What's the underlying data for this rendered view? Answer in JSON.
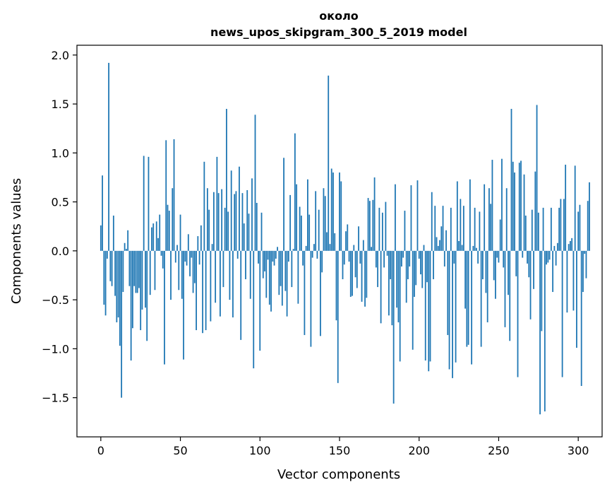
{
  "chart_data": {
    "type": "bar",
    "title_line1": "около",
    "title_line2": "news_upos_skipgram_300_5_2019 model",
    "xlabel": "Vector components",
    "ylabel": "Components values",
    "xlim": [
      -15,
      315
    ],
    "ylim": [
      -1.9,
      2.1
    ],
    "xticks": [
      0,
      50,
      100,
      150,
      200,
      250,
      300
    ],
    "xtick_labels": [
      "0",
      "50",
      "100",
      "150",
      "200",
      "250",
      "300"
    ],
    "yticks": [
      2.0,
      1.5,
      1.0,
      0.5,
      0.0,
      -0.5,
      -1.0,
      -1.5
    ],
    "ytick_labels": [
      "2.0",
      "1.5",
      "1.0",
      "0.5",
      "0.0",
      "−0.5",
      "−1.0",
      "−1.5"
    ],
    "bar_color": "#1f77b4",
    "grid": false,
    "values": [
      0.26,
      0.77,
      -0.55,
      -0.66,
      -0.08,
      1.92,
      -0.31,
      -0.36,
      0.36,
      -0.46,
      -0.73,
      -0.68,
      -0.97,
      -1.5,
      -0.42,
      0.08,
      0.02,
      0.21,
      -0.36,
      -1.12,
      -0.79,
      -0.36,
      -0.43,
      -0.43,
      -0.38,
      -0.81,
      -0.6,
      0.97,
      -0.58,
      -0.92,
      0.96,
      -0.45,
      0.24,
      0.28,
      -0.4,
      0.3,
      0.13,
      0.37,
      -0.05,
      -0.18,
      -1.16,
      1.13,
      0.47,
      0.41,
      -0.5,
      0.64,
      1.14,
      -0.12,
      0.06,
      -0.4,
      0.37,
      -0.49,
      -1.11,
      -0.11,
      -0.15,
      0.17,
      -0.26,
      -0.07,
      -0.43,
      -0.33,
      -0.81,
      0.15,
      -0.14,
      0.26,
      -0.84,
      0.91,
      -0.81,
      0.64,
      0.42,
      -0.72,
      0.07,
      0.6,
      -0.53,
      0.96,
      0.59,
      -0.67,
      0.63,
      -0.37,
      0.44,
      1.45,
      0.4,
      -0.5,
      0.82,
      -0.68,
      0.58,
      0.61,
      -0.08,
      0.86,
      -0.91,
      0.59,
      0.28,
      -0.29,
      0.62,
      0.38,
      -0.49,
      0.74,
      -1.2,
      1.39,
      0.49,
      -0.13,
      -1.02,
      0.39,
      -0.28,
      -0.21,
      -0.48,
      -0.09,
      -0.55,
      -0.62,
      -0.11,
      -0.15,
      -0.08,
      0.04,
      -0.45,
      -0.36,
      -0.56,
      0.95,
      -0.41,
      -0.67,
      -0.11,
      0.57,
      -0.37,
      0.02,
      1.2,
      0.68,
      -0.54,
      0.45,
      0.36,
      -0.15,
      -0.86,
      0.05,
      0.73,
      0.37,
      -0.98,
      -0.07,
      0.07,
      0.61,
      -0.08,
      0.42,
      -0.87,
      -0.22,
      0.64,
      0.56,
      0.19,
      1.79,
      0.07,
      0.84,
      0.8,
      0.18,
      -0.71,
      -1.35,
      0.8,
      0.71,
      -0.29,
      -0.14,
      0.2,
      0.27,
      -0.11,
      -0.47,
      -0.46,
      0.06,
      -0.27,
      -0.38,
      0.25,
      -0.13,
      -0.52,
      0.11,
      -0.57,
      -0.48,
      0.54,
      0.51,
      0.04,
      0.52,
      0.75,
      -0.17,
      -0.37,
      0.44,
      -0.74,
      0.39,
      -0.17,
      0.5,
      -0.05,
      -0.66,
      -0.29,
      -0.76,
      -1.56,
      0.68,
      -0.58,
      -0.73,
      -1.13,
      -0.16,
      -0.07,
      0.41,
      -0.53,
      -0.29,
      -0.16,
      0.67,
      -1.01,
      -0.47,
      -0.35,
      0.72,
      -0.08,
      -0.24,
      -0.38,
      0.06,
      -1.12,
      -0.32,
      -1.23,
      -1.13,
      0.6,
      -0.29,
      0.46,
      0.14,
      0.05,
      0.11,
      0.25,
      0.46,
      -0.16,
      0.21,
      -0.86,
      -1.21,
      0.44,
      -1.3,
      -0.13,
      -1.14,
      0.71,
      0.1,
      0.53,
      0.06,
      0.46,
      -0.59,
      -0.98,
      -0.96,
      0.73,
      -1.16,
      0.05,
      0.44,
      0.03,
      -0.13,
      0.4,
      -0.98,
      -0.29,
      0.68,
      -0.43,
      -0.73,
      0.64,
      0.48,
      0.93,
      -0.3,
      -0.49,
      -0.07,
      -0.12,
      0.32,
      0.94,
      -0.17,
      -0.78,
      0.64,
      -0.45,
      -0.92,
      1.45,
      0.91,
      0.8,
      -0.26,
      -1.29,
      0.9,
      0.92,
      -0.07,
      0.78,
      0.36,
      -0.13,
      -0.27,
      -0.7,
      0.42,
      -0.39,
      0.81,
      1.49,
      0.39,
      -1.67,
      -0.82,
      0.44,
      -1.64,
      -0.14,
      -0.12,
      -0.09,
      0.44,
      -0.42,
      0.05,
      -0.15,
      0.08,
      0.44,
      0.53,
      -1.29,
      0.53,
      0.88,
      -0.63,
      0.07,
      0.1,
      0.13,
      -0.61,
      0.87,
      -0.99,
      0.4,
      0.47,
      -1.38,
      -0.42,
      -0.03,
      -0.28,
      0.51,
      0.7
    ]
  }
}
